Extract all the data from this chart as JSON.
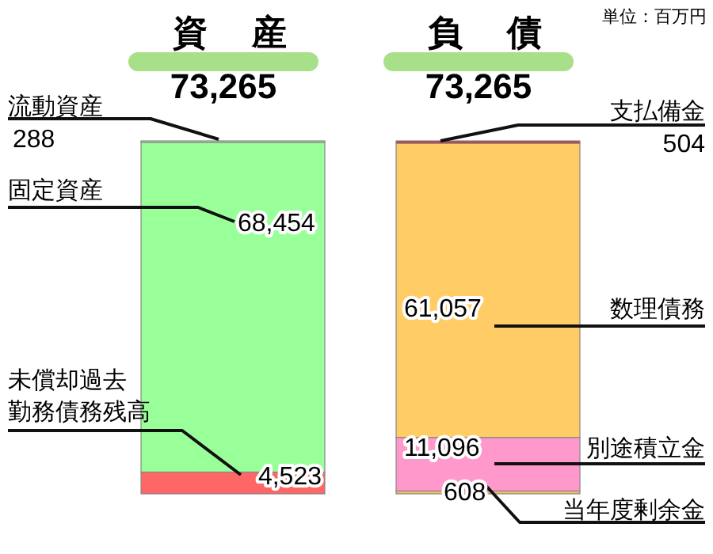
{
  "chart_data": {
    "type": "bar",
    "stacked": true,
    "categories": [
      "資産",
      "負債"
    ],
    "totals": [
      "73,265",
      "73,265"
    ],
    "annotations": [
      "単位：百万円"
    ],
    "series": [
      {
        "name": "未償却過去勤務債務残高",
        "color": "#ff6666",
        "values": [
          4523,
          null
        ],
        "value_labels": [
          "4,523",
          null
        ]
      },
      {
        "name": "固定資産",
        "color": "#99ff99",
        "values": [
          68454,
          null
        ],
        "value_labels": [
          "68,454",
          null
        ]
      },
      {
        "name": "流動資産",
        "color": "#99ff99",
        "values": [
          288,
          null
        ],
        "value_labels": [
          "288",
          null
        ]
      },
      {
        "name": "当年度剰余金",
        "color": "#f0c060",
        "values": [
          null,
          608
        ],
        "value_labels": [
          null,
          "608"
        ]
      },
      {
        "name": "別途積立金",
        "color": "#ff99cc",
        "values": [
          null,
          11096
        ],
        "value_labels": [
          null,
          "11,096"
        ]
      },
      {
        "name": "数理債務",
        "color": "#ffcc66",
        "values": [
          null,
          61057
        ],
        "value_labels": [
          null,
          "61,057"
        ]
      },
      {
        "name": "支払備金",
        "color": "#cc3333",
        "values": [
          null,
          504
        ],
        "value_labels": [
          null,
          "504"
        ]
      }
    ]
  }
}
